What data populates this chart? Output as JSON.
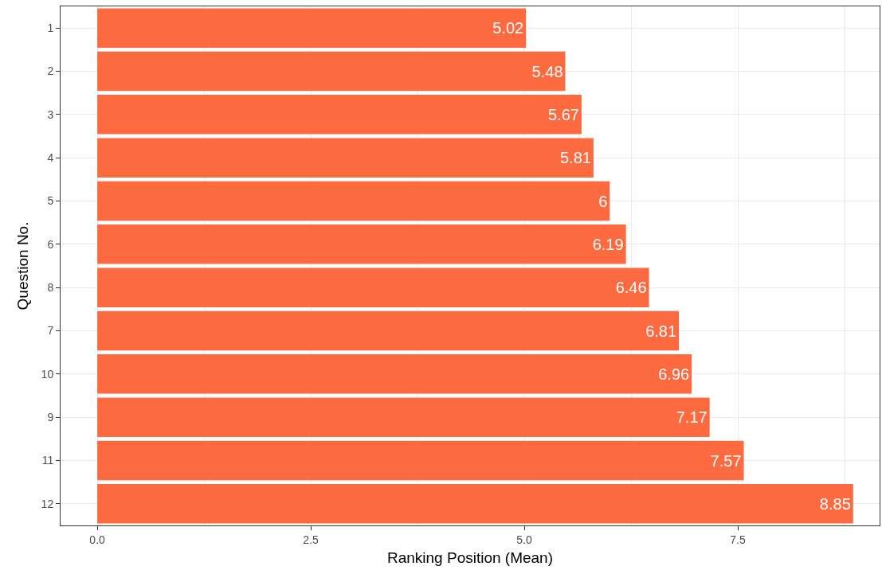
{
  "chart_data": {
    "type": "bar",
    "orientation": "horizontal",
    "xlabel": "Ranking Position (Mean)",
    "ylabel": "Question No.",
    "categories": [
      "1",
      "2",
      "3",
      "4",
      "5",
      "6",
      "8",
      "7",
      "10",
      "9",
      "11",
      "12"
    ],
    "values": [
      5.02,
      5.48,
      5.67,
      5.81,
      6,
      6.19,
      6.46,
      6.81,
      6.96,
      7.17,
      7.57,
      8.85
    ],
    "color": "#fe6a40",
    "xlim": [
      -0.43,
      9.16
    ],
    "xticks": [
      {
        "value": 0,
        "label": "0.0"
      },
      {
        "value": 2.5,
        "label": "2.5"
      },
      {
        "value": 5,
        "label": "5.0"
      },
      {
        "value": 7.5,
        "label": "7.5"
      }
    ],
    "grid": true,
    "data_labels": true
  }
}
